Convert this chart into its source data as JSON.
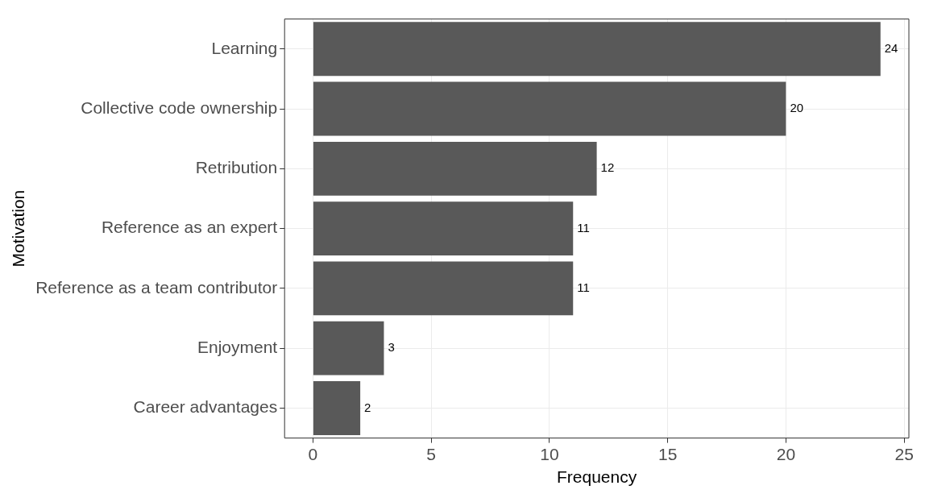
{
  "chart_data": {
    "type": "bar",
    "orientation": "horizontal",
    "xlabel": "Frequency",
    "ylabel": "Motivation",
    "categories": [
      "Learning",
      "Collective code ownership",
      "Retribution",
      "Reference as an expert",
      "Reference as a team contributor",
      "Enjoyment",
      "Career advantages"
    ],
    "values": [
      24,
      20,
      12,
      11,
      11,
      3,
      2
    ],
    "color": "#595959",
    "xlim": [
      -1.2,
      25.2
    ],
    "xticks": [
      0,
      5,
      10,
      15,
      20,
      25
    ],
    "grid": true,
    "data_labels": true,
    "legend": false
  }
}
